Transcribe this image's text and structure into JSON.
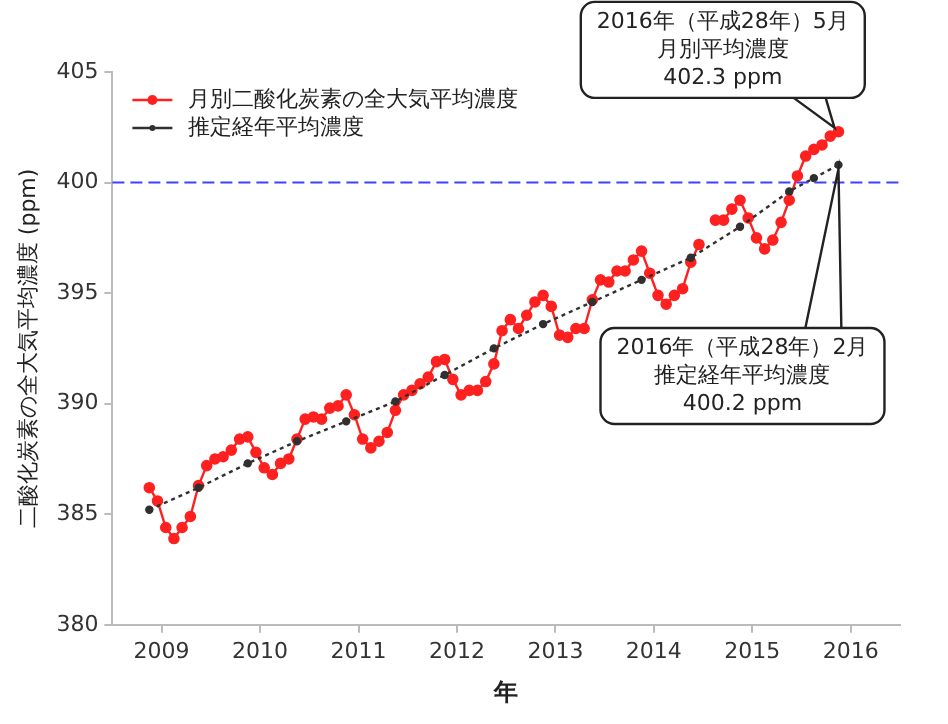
{
  "chart_data": {
    "type": "line",
    "xlabel": "年",
    "ylabel": "二酸化炭素の全大気平均濃度 (ppm)",
    "xlim": [
      2009,
      2017
    ],
    "ylim": [
      380,
      405
    ],
    "yticks": [
      380,
      385,
      390,
      395,
      400,
      405
    ],
    "xticks": [
      {
        "value": 2009.5,
        "label": "2009"
      },
      {
        "value": 2010.5,
        "label": "2010"
      },
      {
        "value": 2011.5,
        "label": "2011"
      },
      {
        "value": 2012.5,
        "label": "2012"
      },
      {
        "value": 2013.5,
        "label": "2013"
      },
      {
        "value": 2014.5,
        "label": "2014"
      },
      {
        "value": 2015.5,
        "label": "2015"
      },
      {
        "value": 2016.5,
        "label": "2016"
      }
    ],
    "grid": false,
    "legend": "top left",
    "series": [
      {
        "name": "月別二酸化炭素の全大気平均濃度",
        "color": "#ff2020",
        "marker": "circle",
        "line_style": "solid",
        "x": [
          2009.375,
          2009.458,
          2009.542,
          2009.625,
          2009.708,
          2009.792,
          2009.875,
          2009.958,
          2010.042,
          2010.125,
          2010.208,
          2010.292,
          2010.375,
          2010.458,
          2010.542,
          2010.625,
          2010.708,
          2010.792,
          2010.875,
          2010.958,
          2011.042,
          2011.125,
          2011.208,
          2011.292,
          2011.375,
          2011.458,
          2011.542,
          2011.625,
          2011.708,
          2011.792,
          2011.875,
          2011.958,
          2012.042,
          2012.125,
          2012.208,
          2012.292,
          2012.375,
          2012.458,
          2012.542,
          2012.625,
          2012.708,
          2012.792,
          2012.875,
          2012.958,
          2013.042,
          2013.125,
          2013.208,
          2013.292,
          2013.375,
          2013.458,
          2013.542,
          2013.625,
          2013.708,
          2013.792,
          2013.875,
          2013.958,
          2014.042,
          2014.125,
          2014.208,
          2014.292,
          2014.375,
          2014.458,
          2014.542,
          2014.625,
          2014.708,
          2014.792,
          2014.875,
          2014.958,
          2015.042,
          2015.125,
          2015.208,
          2015.292,
          2015.375,
          2015.458,
          2015.542,
          2015.625,
          2015.708,
          2015.792,
          2015.875,
          2015.958,
          2016.042,
          2016.125,
          2016.208,
          2016.292,
          2016.375
        ],
        "values": [
          386.2,
          385.6,
          384.4,
          383.9,
          384.4,
          384.9,
          386.3,
          387.2,
          387.5,
          387.6,
          387.9,
          388.4,
          388.5,
          387.8,
          387.1,
          386.8,
          387.3,
          387.5,
          388.4,
          389.3,
          389.4,
          389.3,
          389.8,
          389.9,
          390.4,
          389.5,
          388.4,
          388.0,
          388.3,
          388.7,
          389.7,
          390.4,
          390.6,
          390.9,
          391.2,
          391.9,
          392.0,
          391.1,
          390.4,
          390.6,
          390.6,
          391.0,
          391.8,
          393.3,
          393.8,
          393.4,
          394.0,
          394.6,
          394.9,
          394.4,
          393.1,
          393.0,
          393.4,
          393.4,
          394.7,
          395.6,
          395.5,
          396.0,
          396.0,
          396.5,
          396.9,
          395.9,
          394.9,
          394.5,
          394.9,
          395.2,
          396.4,
          397.2,
          null,
          398.3,
          398.3,
          398.8,
          399.2,
          398.4,
          397.5,
          397.0,
          397.4,
          398.2,
          399.2,
          400.3,
          401.2,
          401.5,
          401.7,
          402.1,
          402.3
        ]
      },
      {
        "name": "推定経年平均濃度",
        "color": "#303030",
        "marker": "circle",
        "line_style": "dotted",
        "x": [
          2009.375,
          2009.875,
          2010.375,
          2010.875,
          2011.375,
          2011.875,
          2012.375,
          2012.875,
          2013.375,
          2013.875,
          2014.375,
          2014.875,
          2015.375,
          2015.875,
          2016.125,
          2016.375
        ],
        "values": [
          385.2,
          386.2,
          387.3,
          388.3,
          389.2,
          390.1,
          391.3,
          392.5,
          393.6,
          394.6,
          395.6,
          396.6,
          398.0,
          399.6,
          400.2,
          400.8
        ]
      }
    ],
    "ref_lines": [
      {
        "axis": "y",
        "value": 400,
        "color": "#4040ff",
        "line_style": "dashed"
      }
    ],
    "annotations": [
      "2016年（平成28年）5月",
      "月別平均濃度",
      "402.3 ppm",
      "2016年（平成28年）2月",
      "推定経年平均濃度",
      "400.2 ppm"
    ]
  }
}
